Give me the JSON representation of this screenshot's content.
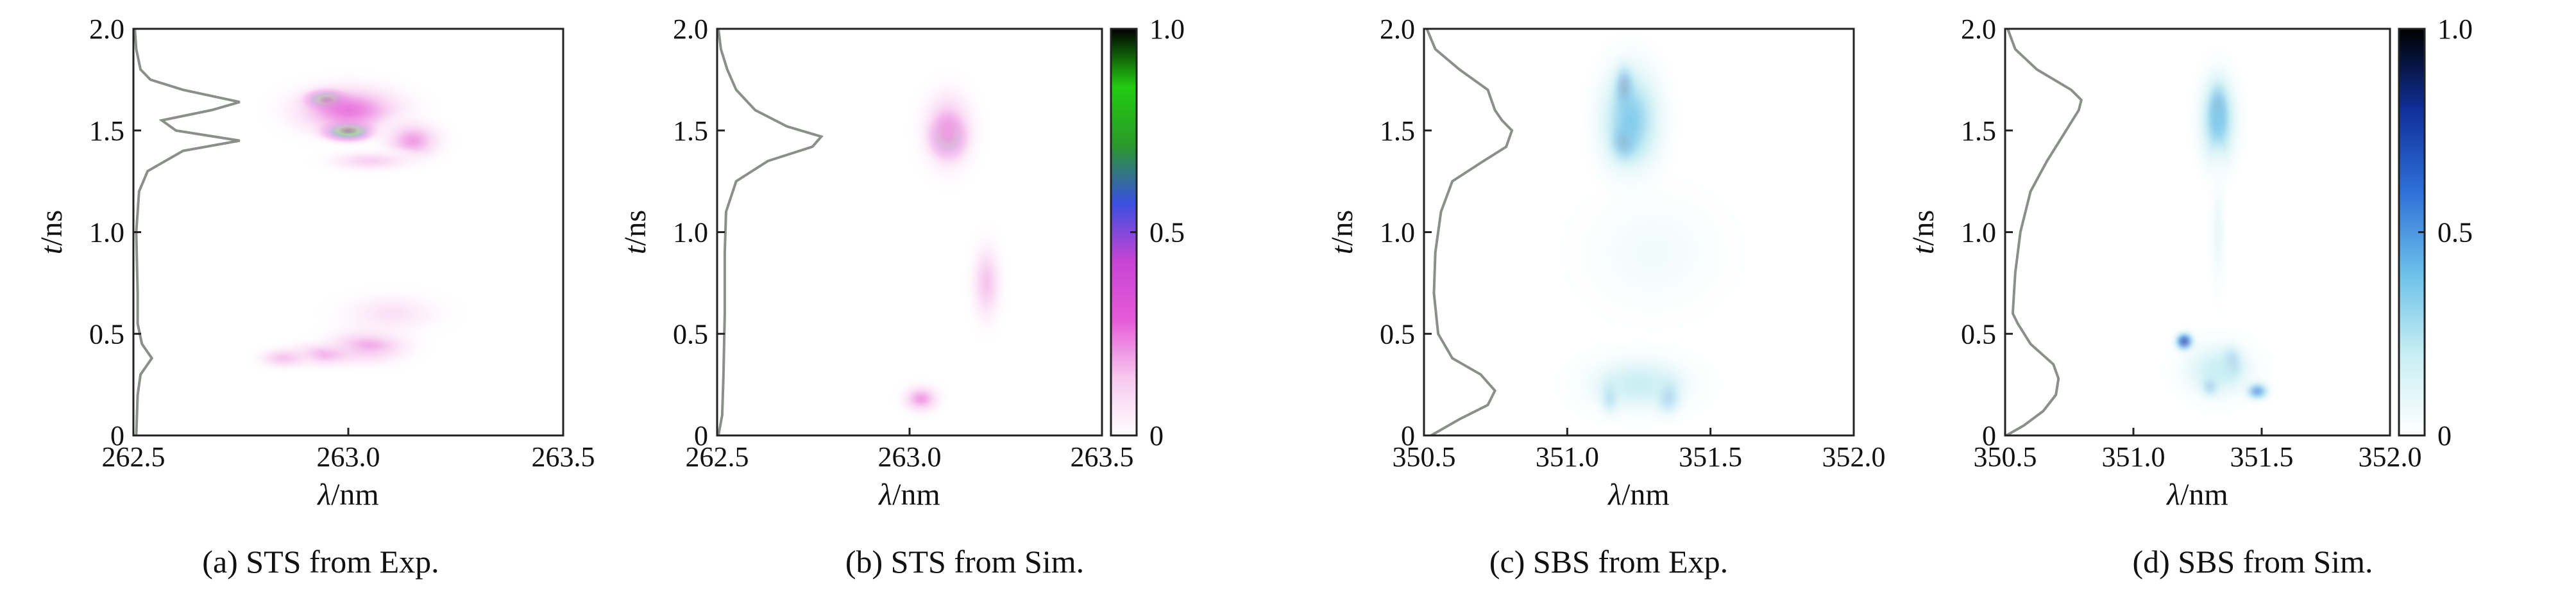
{
  "chart_data": [
    {
      "type": "heatmap",
      "caption": "(a) STS from Exp.",
      "xlabel_italic": "λ",
      "xlabel_unit": "/nm",
      "ylabel_italic": "t",
      "ylabel_unit": "/ns",
      "xlim": [
        262.5,
        263.5
      ],
      "ylim": [
        0,
        2.0
      ],
      "xticks": [
        "262.5",
        "263.0",
        "263.5"
      ],
      "yticks": [
        "0",
        "0.5",
        "1.0",
        "1.5",
        "2.0"
      ],
      "colormap": "white-magenta-blue-green-black",
      "colorbar": false,
      "blobs": [
        {
          "x": 262.95,
          "y": 1.65,
          "sx": 0.05,
          "sy": 0.05,
          "v": 1.0
        },
        {
          "x": 263.0,
          "y": 1.5,
          "sx": 0.06,
          "sy": 0.05,
          "v": 1.0
        },
        {
          "x": 263.0,
          "y": 1.6,
          "sx": 0.14,
          "sy": 0.13,
          "v": 0.25
        },
        {
          "x": 263.15,
          "y": 1.45,
          "sx": 0.07,
          "sy": 0.1,
          "v": 0.2
        },
        {
          "x": 263.05,
          "y": 1.35,
          "sx": 0.1,
          "sy": 0.05,
          "v": 0.12
        },
        {
          "x": 262.95,
          "y": 0.4,
          "sx": 0.1,
          "sy": 0.06,
          "v": 0.22
        },
        {
          "x": 263.05,
          "y": 0.45,
          "sx": 0.1,
          "sy": 0.1,
          "v": 0.18
        },
        {
          "x": 262.85,
          "y": 0.38,
          "sx": 0.06,
          "sy": 0.05,
          "v": 0.15
        },
        {
          "x": 263.1,
          "y": 0.6,
          "sx": 0.12,
          "sy": 0.1,
          "v": 0.08
        }
      ],
      "profile": {
        "t": [
          0.0,
          0.2,
          0.3,
          0.38,
          0.45,
          0.55,
          0.7,
          1.0,
          1.2,
          1.3,
          1.4,
          1.45,
          1.5,
          1.55,
          1.6,
          1.64,
          1.7,
          1.75,
          1.8,
          1.9,
          2.0
        ],
        "value": [
          0.02,
          0.03,
          0.05,
          0.13,
          0.06,
          0.03,
          0.03,
          0.02,
          0.04,
          0.1,
          0.35,
          0.75,
          0.3,
          0.2,
          0.55,
          0.75,
          0.35,
          0.12,
          0.05,
          0.02,
          0.01
        ]
      }
    },
    {
      "type": "heatmap",
      "caption": "(b) STS from Sim.",
      "xlabel_italic": "λ",
      "xlabel_unit": "/nm",
      "ylabel_italic": "t",
      "ylabel_unit": "/ns",
      "xlim": [
        262.5,
        263.5
      ],
      "ylim": [
        0,
        2.0
      ],
      "xticks": [
        "262.5",
        "263.0",
        "263.5"
      ],
      "yticks": [
        "0",
        "0.5",
        "1.0",
        "1.5",
        "2.0"
      ],
      "colormap": "white-magenta-blue-green-black",
      "colorbar": true,
      "colorbar_ticks": [
        "0",
        "0.5",
        "1.0"
      ],
      "blobs": [
        {
          "x": 263.1,
          "y": 1.47,
          "sx": 0.045,
          "sy": 0.1,
          "v": 1.0
        },
        {
          "x": 263.1,
          "y": 1.5,
          "sx": 0.07,
          "sy": 0.2,
          "v": 0.2
        },
        {
          "x": 263.2,
          "y": 0.75,
          "sx": 0.04,
          "sy": 0.2,
          "v": 0.15
        },
        {
          "x": 263.03,
          "y": 0.18,
          "sx": 0.05,
          "sy": 0.07,
          "v": 0.2
        }
      ],
      "profile": {
        "t": [
          0.0,
          0.1,
          0.3,
          0.6,
          0.9,
          1.1,
          1.25,
          1.35,
          1.42,
          1.47,
          1.52,
          1.6,
          1.7,
          1.8,
          1.9,
          2.0
        ],
        "value": [
          0.01,
          0.04,
          0.05,
          0.06,
          0.06,
          0.07,
          0.15,
          0.4,
          0.75,
          0.82,
          0.55,
          0.3,
          0.15,
          0.08,
          0.03,
          0.01
        ]
      }
    },
    {
      "type": "heatmap",
      "caption": "(c) SBS from Exp.",
      "xlabel_italic": "λ",
      "xlabel_unit": "/nm",
      "ylabel_italic": "t",
      "ylabel_unit": "/ns",
      "xlim": [
        350.5,
        352.0
      ],
      "ylim": [
        0,
        2.0
      ],
      "xticks": [
        "350.5",
        "351.0",
        "351.5",
        "352.0"
      ],
      "yticks": [
        "0",
        "0.5",
        "1.0",
        "1.5",
        "2.0"
      ],
      "colormap": "white-cyan-blue-black",
      "colorbar": false,
      "blobs": [
        {
          "x": 351.2,
          "y": 1.7,
          "sx": 0.04,
          "sy": 0.12,
          "v": 0.9
        },
        {
          "x": 351.2,
          "y": 1.45,
          "sx": 0.05,
          "sy": 0.1,
          "v": 0.95
        },
        {
          "x": 351.22,
          "y": 1.55,
          "sx": 0.12,
          "sy": 0.3,
          "v": 0.35
        },
        {
          "x": 351.15,
          "y": 0.2,
          "sx": 0.04,
          "sy": 0.1,
          "v": 0.45
        },
        {
          "x": 351.35,
          "y": 0.2,
          "sx": 0.05,
          "sy": 0.1,
          "v": 0.55
        },
        {
          "x": 351.25,
          "y": 0.25,
          "sx": 0.2,
          "sy": 0.15,
          "v": 0.2
        },
        {
          "x": 351.3,
          "y": 0.9,
          "sx": 0.25,
          "sy": 0.3,
          "v": 0.05
        }
      ],
      "profile": {
        "t": [
          0.0,
          0.08,
          0.15,
          0.22,
          0.3,
          0.38,
          0.5,
          0.7,
          0.9,
          1.1,
          1.25,
          1.35,
          1.42,
          1.5,
          1.55,
          1.6,
          1.7,
          1.8,
          1.9,
          2.0
        ],
        "value": [
          0.05,
          0.25,
          0.45,
          0.5,
          0.4,
          0.2,
          0.1,
          0.07,
          0.08,
          0.12,
          0.2,
          0.42,
          0.58,
          0.62,
          0.55,
          0.5,
          0.45,
          0.25,
          0.08,
          0.02
        ]
      }
    },
    {
      "type": "heatmap",
      "caption": "(d) SBS from Sim.",
      "xlabel_italic": "λ",
      "xlabel_unit": "/nm",
      "ylabel_italic": "t",
      "ylabel_unit": "/ns",
      "xlim": [
        350.5,
        352.0
      ],
      "ylim": [
        0,
        2.0
      ],
      "xticks": [
        "350.5",
        "351.0",
        "351.5",
        "352.0"
      ],
      "yticks": [
        "0",
        "0.5",
        "1.0",
        "1.5",
        "2.0"
      ],
      "colormap": "white-cyan-blue-black",
      "colorbar": true,
      "colorbar_ticks": [
        "0",
        "0.5",
        "1.0"
      ],
      "blobs": [
        {
          "x": 351.33,
          "y": 1.6,
          "sx": 0.04,
          "sy": 0.13,
          "v": 1.0
        },
        {
          "x": 351.33,
          "y": 1.55,
          "sx": 0.08,
          "sy": 0.25,
          "v": 0.35
        },
        {
          "x": 351.33,
          "y": 1.0,
          "sx": 0.03,
          "sy": 0.3,
          "v": 0.08
        },
        {
          "x": 351.2,
          "y": 0.46,
          "sx": 0.04,
          "sy": 0.05,
          "v": 0.75
        },
        {
          "x": 351.38,
          "y": 0.35,
          "sx": 0.05,
          "sy": 0.09,
          "v": 0.7
        },
        {
          "x": 351.3,
          "y": 0.25,
          "sx": 0.04,
          "sy": 0.06,
          "v": 0.65
        },
        {
          "x": 351.48,
          "y": 0.22,
          "sx": 0.05,
          "sy": 0.05,
          "v": 0.55
        },
        {
          "x": 351.33,
          "y": 0.32,
          "sx": 0.15,
          "sy": 0.15,
          "v": 0.2
        }
      ],
      "profile": {
        "t": [
          0.0,
          0.05,
          0.12,
          0.2,
          0.28,
          0.35,
          0.45,
          0.55,
          0.6,
          0.8,
          1.0,
          1.2,
          1.35,
          1.5,
          1.6,
          1.65,
          1.7,
          1.8,
          1.9,
          2.0
        ],
        "value": [
          0.01,
          0.15,
          0.3,
          0.4,
          0.42,
          0.38,
          0.2,
          0.1,
          0.06,
          0.08,
          0.12,
          0.2,
          0.33,
          0.48,
          0.58,
          0.6,
          0.52,
          0.25,
          0.08,
          0.02
        ]
      }
    }
  ],
  "colors": {
    "profile_line": "#8a8f8a",
    "sts_map": [
      "#ffffff",
      "#f7c8ef",
      "#e55ad8",
      "#c844d4",
      "#3a4fe0",
      "#2a9a2a",
      "#22cc11",
      "#000000"
    ],
    "sbs_map": [
      "#ffffff",
      "#c8eef3",
      "#6cc0ea",
      "#2f6fd8",
      "#10309a",
      "#000000"
    ]
  }
}
